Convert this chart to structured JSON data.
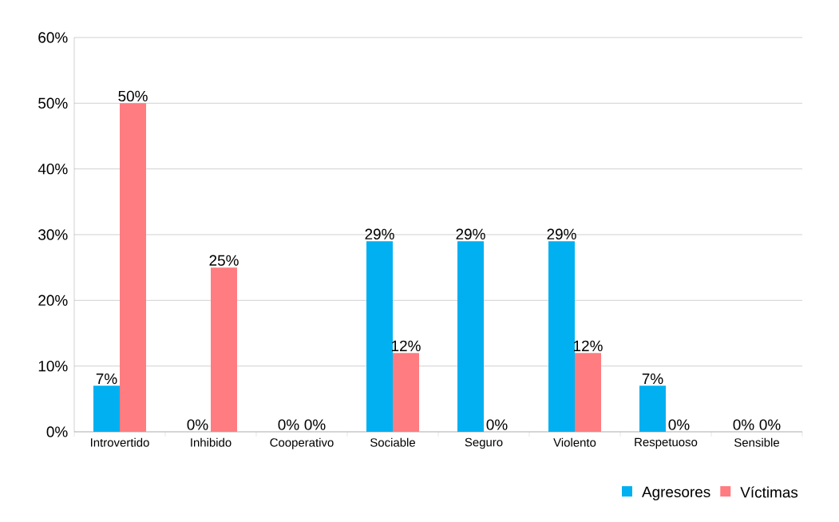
{
  "chart_data": {
    "type": "bar",
    "categories": [
      "Introvertido",
      "Inhibido",
      "Cooperativo",
      "Sociable",
      "Seguro",
      "Violento",
      "Respetuoso",
      "Sensible"
    ],
    "series": [
      {
        "name": "Agresores",
        "color": "#00b0f0",
        "values": [
          7,
          0,
          0,
          29,
          29,
          29,
          7,
          0
        ],
        "value_labels": [
          "7%",
          "0%",
          "0%",
          "29%",
          "29%",
          "29%",
          "7%",
          "0%"
        ]
      },
      {
        "name": "Víctimas",
        "color": "#ff7c80",
        "values": [
          50,
          25,
          0,
          12,
          0,
          12,
          0,
          0
        ],
        "value_labels": [
          "50%",
          "25%",
          "0%",
          "12%",
          "0%",
          "12%",
          "0%",
          "0%"
        ]
      }
    ],
    "ylim": [
      0,
      60
    ],
    "yticks": [
      {
        "value": 0,
        "label": "0%"
      },
      {
        "value": 10,
        "label": "10%"
      },
      {
        "value": 20,
        "label": "20%"
      },
      {
        "value": 30,
        "label": "30%"
      },
      {
        "value": 40,
        "label": "40%"
      },
      {
        "value": 50,
        "label": "50%"
      },
      {
        "value": 60,
        "label": "60%"
      }
    ],
    "grid": "y",
    "legend": "bottom right"
  }
}
